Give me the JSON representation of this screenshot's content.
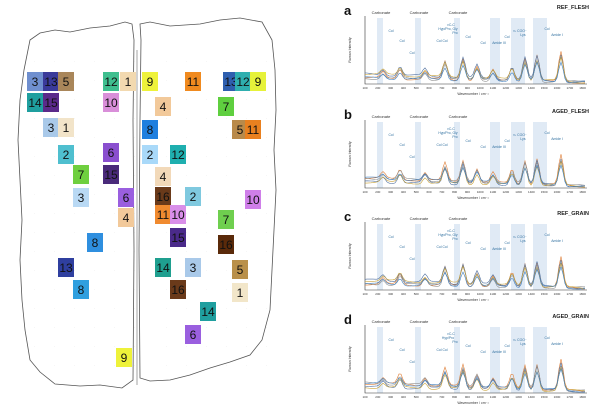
{
  "map": {
    "tiles_left": [
      {
        "label": "3",
        "color": "#6f8fcf"
      },
      {
        "label": "13",
        "color": "#3a3a9a"
      },
      {
        "label": "5",
        "color": "#a9865a"
      },
      {
        "label": "12",
        "color": "#3fbf8f"
      },
      {
        "label": "1",
        "color": "#f2d9b0"
      },
      {
        "label": "14",
        "color": "#1f9f9f"
      },
      {
        "label": "15",
        "color": "#5a2a8a"
      },
      {
        "label": "10",
        "color": "#d98fd9"
      },
      {
        "label": "3",
        "color": "#a9c9e9"
      },
      {
        "label": "1",
        "color": "#f2e4c9"
      },
      {
        "label": "2",
        "color": "#4fbfcf"
      },
      {
        "label": "6",
        "color": "#8a4fcf"
      },
      {
        "label": "7",
        "color": "#6fcf3f"
      },
      {
        "label": "15",
        "color": "#4a2a7a"
      },
      {
        "label": "3",
        "color": "#b9d9f4"
      },
      {
        "label": "6",
        "color": "#9a5fdf"
      },
      {
        "label": "4",
        "color": "#f2c99a"
      },
      {
        "label": "8",
        "color": "#2f8fdf"
      },
      {
        "label": "13",
        "color": "#2f3f9f"
      },
      {
        "label": "8",
        "color": "#2f9fdf"
      }
    ],
    "tiles_right": [
      {
        "label": "9",
        "color": "#eef23a"
      },
      {
        "label": "11",
        "color": "#f08a1f"
      },
      {
        "label": "13",
        "color": "#2f5faf"
      },
      {
        "label": "12",
        "color": "#2fafaf"
      },
      {
        "label": "9",
        "color": "#e6f23a"
      },
      {
        "label": "4",
        "color": "#f2c99a"
      },
      {
        "label": "7",
        "color": "#5fcf3f"
      },
      {
        "label": "8",
        "color": "#1f7fdf"
      },
      {
        "label": "5",
        "color": "#b98a4a"
      },
      {
        "label": "11",
        "color": "#e9801f"
      },
      {
        "label": "2",
        "color": "#a9d9f9"
      },
      {
        "label": "12",
        "color": "#1fafaf"
      },
      {
        "label": "4",
        "color": "#f2d9b9"
      },
      {
        "label": "16",
        "color": "#6a3a1a"
      },
      {
        "label": "11",
        "color": "#f08a2f"
      },
      {
        "label": "10",
        "color": "#d98fe9"
      },
      {
        "label": "2",
        "color": "#7fc9df"
      },
      {
        "label": "10",
        "color": "#cf7fe9"
      },
      {
        "label": "15",
        "color": "#4a2a8a"
      },
      {
        "label": "7",
        "color": "#6fcf4f"
      },
      {
        "label": "16",
        "color": "#5a2a0a"
      },
      {
        "label": "14",
        "color": "#1f9f8f"
      },
      {
        "label": "3",
        "color": "#a9c9e9"
      },
      {
        "label": "5",
        "color": "#b9904a"
      },
      {
        "label": "16",
        "color": "#6a3a1a"
      },
      {
        "label": "1",
        "color": "#f2e6c9"
      },
      {
        "label": "14",
        "color": "#1f9f9f"
      },
      {
        "label": "6",
        "color": "#9a5fdf"
      }
    ],
    "tile_bottom": {
      "label": "9",
      "color": "#eef23a"
    }
  },
  "panels": [
    {
      "letter": "a",
      "title": "REF_FLESH",
      "ylabel": "Raman Intensity",
      "xlabel": "Wavenumber / cm⁻¹",
      "annotations": [
        "Carbonate",
        "Carbonate",
        "Carbonate",
        "Col",
        "Col",
        "Col",
        "νC-C",
        "Hyp/Pro, Gly",
        "Pro",
        "Col Col",
        "Col",
        "Col",
        "Amide III",
        "Col",
        "νₛ COO⁻",
        "Lys",
        "Col",
        "Amide I"
      ],
      "xticks": [
        "100",
        "200",
        "300",
        "400",
        "500",
        "600",
        "700",
        "800",
        "900",
        "1000",
        "1100",
        "1200",
        "1300",
        "1400",
        "1500",
        "1600",
        "1700",
        "1800"
      ]
    },
    {
      "letter": "b",
      "title": "AGED_FLESH",
      "ylabel": "Raman Intensity",
      "xlabel": "Wavenumber / cm⁻¹",
      "annotations": [
        "Carbonate",
        "Carbonate",
        "Carbonate",
        "Col",
        "Col",
        "Col",
        "νC-C",
        "Hyp/Pro, Gly",
        "Pro",
        "Col Col",
        "Col",
        "Col",
        "Amide III",
        "Col",
        "νₛ COO⁻",
        "Lys",
        "Col",
        "Amide I"
      ],
      "xticks": [
        "100",
        "200",
        "300",
        "400",
        "500",
        "600",
        "700",
        "800",
        "900",
        "1000",
        "1100",
        "1200",
        "1300",
        "1400",
        "1500",
        "1600",
        "1700",
        "1800"
      ]
    },
    {
      "letter": "c",
      "title": "REF_GRAIN",
      "ylabel": "Raman Intensity",
      "xlabel": "Wavenumber / cm⁻¹",
      "annotations": [
        "Carbonate",
        "Carbonate",
        "Carbonate",
        "Col",
        "Col",
        "Col",
        "νC-C",
        "Hyp/Pro, Gly",
        "Pro",
        "Col Col",
        "Col",
        "Col",
        "Amide III",
        "Col",
        "νₛ COO⁻",
        "Lys",
        "Col",
        "Amide I"
      ],
      "xticks": [
        "100",
        "200",
        "300",
        "400",
        "500",
        "600",
        "700",
        "800",
        "900",
        "1000",
        "1100",
        "1200",
        "1300",
        "1400",
        "1500",
        "1600",
        "1700",
        "1800"
      ]
    },
    {
      "letter": "d",
      "title": "AGED_GRAIN",
      "ylabel": "Raman Intensity",
      "xlabel": "Wavenumber / cm⁻¹",
      "annotations": [
        "Carbonate",
        "Carbonate",
        "Carbonate",
        "Col",
        "Col",
        "Col",
        "νC-C",
        "Hyp/Pro",
        "Pro",
        "Col Col",
        "Col",
        "Col",
        "Amide III",
        "Col",
        "νₛ COO⁻",
        "Lys",
        "Col",
        "Amide I"
      ],
      "xticks": [
        "100",
        "200",
        "300",
        "400",
        "500",
        "600",
        "700",
        "800",
        "900",
        "1000",
        "1100",
        "1200",
        "1300",
        "1400",
        "1500",
        "1600",
        "1700",
        "1800"
      ]
    }
  ]
}
